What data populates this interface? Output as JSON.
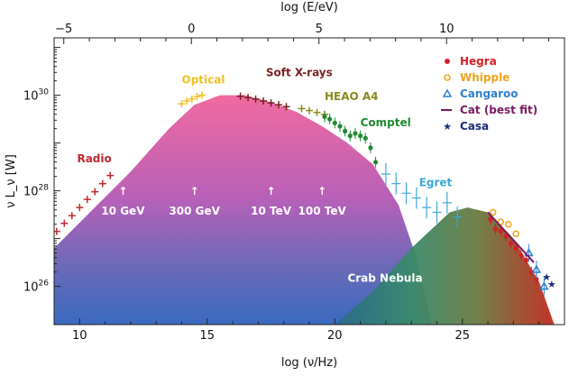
{
  "chart_data": {
    "type": "scatter",
    "xlabel": "log (ν/Hz)",
    "ylabel": "ν L_ν [W]",
    "top_xlabel": "log (E/eV)",
    "xlim": [
      9,
      29
    ],
    "ylim": [
      25.2,
      31.2
    ],
    "y_scale": "log",
    "x_ticks": [
      "10",
      "15",
      "20",
      "25"
    ],
    "top_x_ticks": [
      "−5",
      "0",
      "5",
      "10"
    ],
    "y_ticks": [
      {
        "base": "10",
        "exp": "26"
      },
      {
        "base": "10",
        "exp": "28"
      },
      {
        "base": "10",
        "exp": "30"
      }
    ],
    "synchrotron_component": {
      "x": [
        9.0,
        10.5,
        12.0,
        13.5,
        14.5,
        15.5,
        16.5,
        17.5,
        18.5,
        19.5,
        20.5,
        21.5,
        22.5,
        23.2,
        23.8
      ],
      "y": [
        26.8,
        27.6,
        28.4,
        29.3,
        29.8,
        30.0,
        30.0,
        29.85,
        29.65,
        29.35,
        29.0,
        28.55,
        27.7,
        26.6,
        25.2
      ]
    },
    "inverse_compton_component": {
      "x": [
        20.0,
        21.5,
        23.0,
        24.5,
        25.2,
        26.0,
        27.0,
        28.0,
        28.6
      ],
      "y": [
        25.2,
        25.9,
        26.8,
        27.55,
        27.65,
        27.55,
        27.0,
        26.1,
        25.2
      ]
    },
    "band_labels": [
      {
        "text": "Radio",
        "color": "#c0282c",
        "x": 9.9,
        "y": 28.6
      },
      {
        "text": "Optical",
        "color": "#f2c020",
        "x": 14.0,
        "y": 30.25
      },
      {
        "text": "Soft X-rays",
        "color": "#7a1f22",
        "x": 17.3,
        "y": 30.4
      },
      {
        "text": "HEAO A4",
        "color": "#8a8a1e",
        "x": 19.6,
        "y": 29.9
      },
      {
        "text": "Comptel",
        "color": "#1e8a30",
        "x": 21.0,
        "y": 29.35
      },
      {
        "text": "Egret",
        "color": "#3aa8d8",
        "x": 23.3,
        "y": 28.1
      },
      {
        "text": "Crab Nebula",
        "color": "#ffffff",
        "x": 20.5,
        "y": 26.1
      }
    ],
    "energy_markers": [
      "10 GeV",
      "300 GeV",
      "10 TeV",
      "100 TeV"
    ],
    "energy_marker_x": [
      11.7,
      14.5,
      17.5,
      19.5
    ],
    "energy_marker_y": 27.5,
    "legend_position": "top-right",
    "legend": [
      {
        "label": "Hegra",
        "color": "#d61f26",
        "marker": "dot"
      },
      {
        "label": "Whipple",
        "color": "#f0a21a",
        "marker": "circle"
      },
      {
        "label": "Cangaroo",
        "color": "#2d7fd1",
        "marker": "triangle"
      },
      {
        "label": "Cat (best fit)",
        "color": "#7a1a5e",
        "marker": "line"
      },
      {
        "label": "Casa",
        "color": "#1a2a7a",
        "marker": "star"
      }
    ],
    "series": [
      {
        "name": "Radio",
        "color": "#c0282c",
        "x": [
          9.1,
          9.4,
          9.7,
          10.0,
          10.3,
          10.6,
          10.9,
          11.2
        ],
        "y": [
          27.15,
          27.32,
          27.48,
          27.65,
          27.82,
          27.98,
          28.15,
          28.32
        ]
      },
      {
        "name": "Optical",
        "color": "#f2c020",
        "x": [
          14.0,
          14.2,
          14.4,
          14.6,
          14.8
        ],
        "y": [
          29.82,
          29.88,
          29.92,
          29.97,
          30.0
        ]
      },
      {
        "name": "Soft X-rays",
        "color": "#7a1f22",
        "x": [
          16.3,
          16.6,
          16.9,
          17.2,
          17.5,
          17.8,
          18.1
        ],
        "y": [
          29.98,
          29.95,
          29.92,
          29.88,
          29.84,
          29.8,
          29.76
        ]
      },
      {
        "name": "HEAO A4",
        "color": "#8a8a1e",
        "x": [
          18.7,
          19.0,
          19.3,
          19.6
        ],
        "y": [
          29.72,
          29.68,
          29.64,
          29.6
        ]
      },
      {
        "name": "Comptel",
        "color": "#1e8a30",
        "x": [
          19.6,
          19.8,
          20.0,
          20.2,
          20.4,
          20.6,
          20.8,
          21.0,
          21.2,
          21.4,
          21.6
        ],
        "y": [
          29.55,
          29.5,
          29.42,
          29.35,
          29.25,
          29.15,
          29.2,
          29.15,
          29.1,
          28.9,
          28.6
        ]
      },
      {
        "name": "Egret",
        "color": "#3aa8d8",
        "x": [
          22.0,
          22.4,
          22.8,
          23.2,
          23.6,
          24.0,
          24.4,
          24.8
        ],
        "y": [
          28.35,
          28.15,
          27.95,
          27.85,
          27.65,
          27.55,
          27.75,
          27.45
        ]
      },
      {
        "name": "Hegra",
        "color": "#d61f26",
        "x": [
          26.1,
          26.3,
          26.5,
          26.7,
          26.9,
          27.1,
          27.3,
          27.5,
          27.7,
          27.9
        ],
        "y": [
          27.4,
          27.2,
          27.15,
          27.05,
          26.9,
          26.8,
          26.65,
          26.55,
          26.3,
          26.15
        ]
      },
      {
        "name": "Whipple",
        "color": "#f0a21a",
        "x": [
          26.2,
          26.5,
          26.8,
          27.1
        ],
        "y": [
          27.55,
          27.35,
          27.3,
          27.1
        ]
      },
      {
        "name": "Cangaroo",
        "color": "#2d7fd1",
        "x": [
          27.6,
          27.9,
          28.2
        ],
        "y": [
          26.7,
          26.35,
          26.0
        ]
      },
      {
        "name": "Cat (best fit)",
        "color": "#7a1a5e",
        "x": [
          26.0,
          26.6,
          27.2,
          27.8
        ],
        "y": [
          27.55,
          27.2,
          26.85,
          26.5
        ]
      },
      {
        "name": "Casa",
        "color": "#1a2a7a",
        "x": [
          28.3,
          28.5
        ],
        "y": [
          26.2,
          26.05
        ]
      }
    ]
  }
}
